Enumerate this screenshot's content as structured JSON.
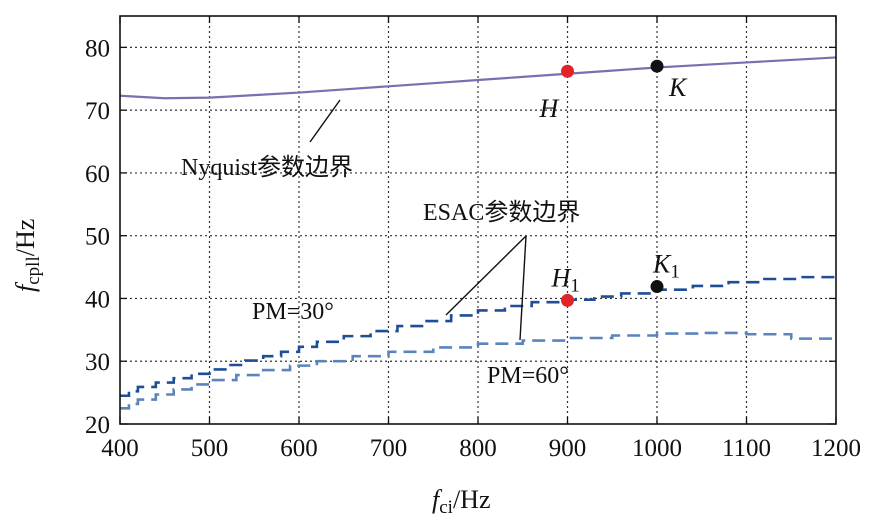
{
  "chart_data": {
    "type": "line",
    "xlabel": {
      "main": "f",
      "sub": "ci",
      "unit": "/Hz"
    },
    "ylabel": {
      "main": "f",
      "sub": "cpll",
      "unit": "/Hz"
    },
    "xlim": [
      400,
      1200
    ],
    "ylim": [
      20,
      85
    ],
    "xticks": [
      400,
      500,
      600,
      700,
      800,
      900,
      1000,
      1100,
      1200
    ],
    "yticks": [
      20,
      30,
      40,
      50,
      60,
      70,
      80
    ],
    "grid": true,
    "series": [
      {
        "name": "Nyquist参数边界",
        "style": "solid",
        "color": "#7a6fb0",
        "x": [
          400,
          450,
          500,
          550,
          600,
          650,
          700,
          750,
          800,
          850,
          900,
          950,
          1000,
          1050,
          1100,
          1150,
          1200
        ],
        "y": [
          72.3,
          71.9,
          72.0,
          72.4,
          72.8,
          73.3,
          73.8,
          74.3,
          74.8,
          75.3,
          75.8,
          76.3,
          76.8,
          77.2,
          77.6,
          78.0,
          78.4
        ]
      },
      {
        "name": "PM=30°",
        "style": "dashed",
        "color": "#1f4e96",
        "x": [
          400,
          410,
          420,
          440,
          460,
          480,
          500,
          520,
          540,
          560,
          580,
          600,
          620,
          650,
          680,
          710,
          740,
          770,
          800,
          830,
          860,
          900,
          930,
          960,
          1000,
          1040,
          1080,
          1120,
          1160,
          1200
        ],
        "y": [
          24.5,
          25.2,
          25.9,
          26.6,
          27.3,
          28.0,
          28.7,
          29.4,
          30.1,
          30.8,
          31.5,
          32.3,
          33.1,
          34.0,
          34.8,
          35.6,
          36.4,
          37.3,
          38.1,
          38.8,
          39.4,
          39.8,
          40.3,
          40.8,
          41.4,
          42.0,
          42.6,
          43.1,
          43.4,
          43.5
        ]
      },
      {
        "name": "PM=60°",
        "style": "dashed",
        "color": "#5b84bd",
        "x": [
          400,
          410,
          420,
          440,
          460,
          480,
          500,
          530,
          560,
          590,
          620,
          660,
          700,
          750,
          800,
          850,
          900,
          950,
          1000,
          1050,
          1100,
          1150,
          1200
        ],
        "y": [
          22.5,
          23.2,
          23.9,
          24.7,
          25.5,
          26.3,
          27.0,
          27.8,
          28.6,
          29.3,
          30.0,
          30.8,
          31.5,
          32.2,
          32.8,
          33.3,
          33.7,
          34.1,
          34.4,
          34.5,
          34.3,
          33.6,
          33.5
        ]
      }
    ],
    "points": [
      {
        "label": "H",
        "sub": "",
        "x": 900,
        "y": 76.2,
        "color": "#e0242a"
      },
      {
        "label": "K",
        "sub": "",
        "x": 1000,
        "y": 77.0,
        "color": "#111111"
      },
      {
        "label": "H",
        "sub": "1",
        "x": 900,
        "y": 39.7,
        "color": "#e0242a"
      },
      {
        "label": "K",
        "sub": "1",
        "x": 1000,
        "y": 41.9,
        "color": "#111111"
      }
    ],
    "annotations": {
      "nyquist": "Nyquist参数边界",
      "esac": "ESAC参数边界",
      "pm30": "PM=30°",
      "pm60": "PM=60°"
    }
  }
}
